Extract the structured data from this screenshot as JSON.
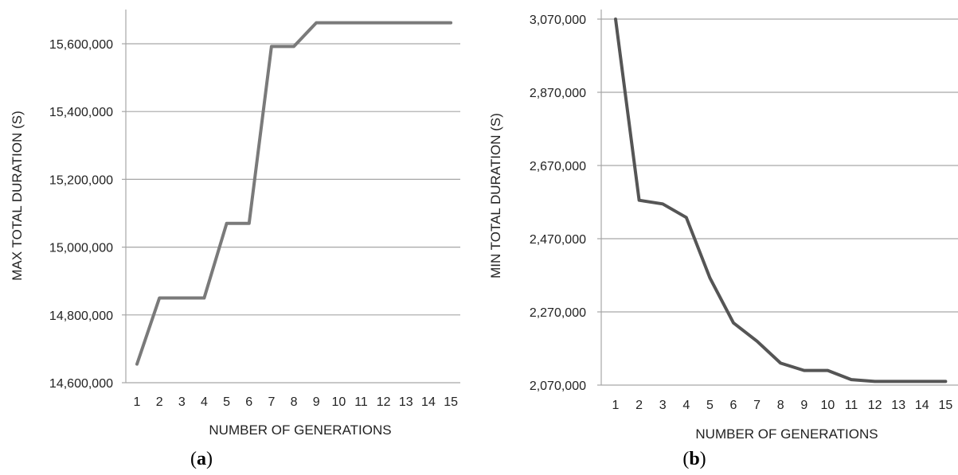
{
  "chart_data": [
    {
      "type": "line",
      "panel_label": "a",
      "xlabel": "NUMBER OF GENERATIONS",
      "ylabel": "MAX  TOTAL  DURATION (S)",
      "x": [
        1,
        2,
        3,
        4,
        5,
        6,
        7,
        8,
        9,
        10,
        11,
        12,
        13,
        14,
        15
      ],
      "series": [
        {
          "values": [
            14655000,
            14850000,
            14850000,
            14850000,
            15070000,
            15070000,
            15592000,
            15592000,
            15662000,
            15662000,
            15662000,
            15662000,
            15662000,
            15662000,
            15662000
          ],
          "color": "#7a7a7a"
        }
      ],
      "ylim": [
        14600000,
        15700000
      ],
      "yticks": [
        14600000,
        14800000,
        15000000,
        15200000,
        15400000,
        15600000
      ],
      "ytick_labels": [
        "14,600,000",
        "14,800,000",
        "15,000,000",
        "15,200,000",
        "15,400,000",
        "15,600,000"
      ],
      "grid": "horizontal"
    },
    {
      "type": "line",
      "panel_label": "b",
      "xlabel": "NUMBER OF GENERATIONS",
      "ylabel": "MIN  TOTAL DURATION (S)",
      "x": [
        1,
        2,
        3,
        4,
        5,
        6,
        7,
        8,
        9,
        10,
        11,
        12,
        13,
        14,
        15
      ],
      "series": [
        {
          "values": [
            3070000,
            2575000,
            2565000,
            2528000,
            2363000,
            2240000,
            2190000,
            2130000,
            2110000,
            2110000,
            2085000,
            2080000,
            2080000,
            2080000,
            2080000
          ],
          "color": "#555555"
        }
      ],
      "ylim": [
        2070000,
        3070000
      ],
      "yticks": [
        2070000,
        2270000,
        2470000,
        2670000,
        2870000,
        3070000
      ],
      "ytick_labels": [
        "2,070,000",
        "2,270,000",
        "2,470,000",
        "2,670,000",
        "2,870,000",
        "3,070,000"
      ],
      "grid": "horizontal"
    }
  ]
}
